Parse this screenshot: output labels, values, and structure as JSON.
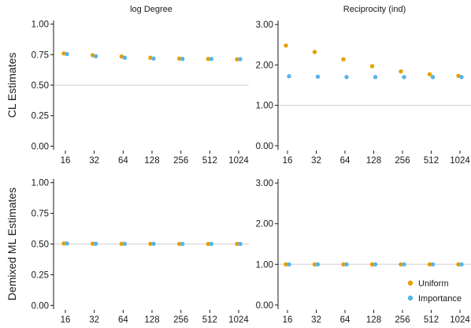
{
  "colors": {
    "uniform": "#E69F00",
    "importance": "#56B4E9",
    "reference_line": "#d9d9d9",
    "axis": "#1a1a1a"
  },
  "chart_data": [
    {
      "type": "scatter",
      "panel": "top-left",
      "title": "log Degree",
      "ylabel": "CL Estimates",
      "x_scale": "log2",
      "categories": [
        "16",
        "32",
        "64",
        "128",
        "256",
        "512",
        "1024"
      ],
      "ylim": [
        -0.03,
        1.03
      ],
      "yticks": [
        "0.00",
        "0.25",
        "0.50",
        "0.75",
        "1.00"
      ],
      "reference_line": 0.5,
      "series": [
        {
          "name": "Uniform",
          "values": [
            0.76,
            0.745,
            0.735,
            0.725,
            0.718,
            0.715,
            0.712
          ]
        },
        {
          "name": "Importance",
          "values": [
            0.755,
            0.737,
            0.725,
            0.718,
            0.715,
            0.715,
            0.713
          ]
        }
      ]
    },
    {
      "type": "scatter",
      "panel": "top-right",
      "title": "Reciprocity (ind)",
      "x_scale": "log2",
      "categories": [
        "16",
        "32",
        "64",
        "128",
        "256",
        "512",
        "1024"
      ],
      "ylim": [
        -0.1,
        3.1
      ],
      "yticks": [
        "0.00",
        "1.00",
        "2.00",
        "3.00"
      ],
      "reference_line": 1.0,
      "series": [
        {
          "name": "Uniform",
          "values": [
            2.48,
            2.32,
            2.14,
            1.97,
            1.84,
            1.77,
            1.73
          ]
        },
        {
          "name": "Importance",
          "values": [
            1.72,
            1.71,
            1.7,
            1.7,
            1.7,
            1.7,
            1.7
          ]
        }
      ]
    },
    {
      "type": "scatter",
      "panel": "bottom-left",
      "ylabel": "Demixed ML Estimates",
      "x_scale": "log2",
      "categories": [
        "16",
        "32",
        "64",
        "128",
        "256",
        "512",
        "1024"
      ],
      "ylim": [
        -0.03,
        1.03
      ],
      "yticks": [
        "0.00",
        "0.25",
        "0.50",
        "0.75",
        "1.00"
      ],
      "reference_line": 0.5,
      "series": [
        {
          "name": "Uniform",
          "values": [
            0.505,
            0.503,
            0.502,
            0.502,
            0.501,
            0.501,
            0.501
          ]
        },
        {
          "name": "Importance",
          "values": [
            0.505,
            0.503,
            0.502,
            0.502,
            0.501,
            0.501,
            0.501
          ]
        }
      ]
    },
    {
      "type": "scatter",
      "panel": "bottom-right",
      "x_scale": "log2",
      "categories": [
        "16",
        "32",
        "64",
        "128",
        "256",
        "512",
        "1024"
      ],
      "ylim": [
        -0.1,
        3.1
      ],
      "yticks": [
        "0.00",
        "1.00",
        "2.00",
        "3.00"
      ],
      "reference_line": 1.0,
      "legend_position": "bottom-right",
      "series": [
        {
          "name": "Uniform",
          "values": [
            1.0,
            1.0,
            1.0,
            1.0,
            1.0,
            1.0,
            1.0
          ]
        },
        {
          "name": "Importance",
          "values": [
            1.0,
            1.0,
            1.0,
            1.0,
            1.0,
            1.0,
            1.0
          ]
        }
      ]
    }
  ],
  "legend": {
    "items": [
      {
        "label": "Uniform",
        "color_key": "uniform"
      },
      {
        "label": "Importance",
        "color_key": "importance"
      }
    ]
  }
}
